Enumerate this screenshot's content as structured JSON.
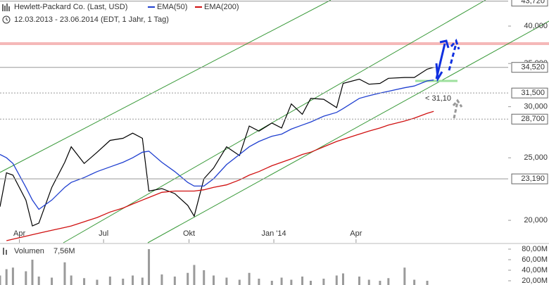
{
  "chart_data": [
    {
      "type": "line",
      "subtitle": "12.03.2013 - 23.06.2014 (EDT, 1 Jahr, 1 Tag)",
      "x": [
        0,
        1,
        2,
        4,
        5,
        6,
        8,
        10,
        11,
        13,
        15,
        17,
        19,
        20.5,
        22,
        23,
        25,
        27,
        29,
        30,
        31.5,
        33,
        35,
        37,
        38.5,
        40,
        42,
        43.5,
        45,
        46.7,
        48,
        50,
        52,
        53,
        55.5,
        57,
        58.7,
        60,
        62.5,
        64,
        66,
        67
      ],
      "xlim": [
        0,
        78.5
      ],
      "xticks": [
        {
          "value": 3,
          "label": "Apr"
        },
        {
          "value": 16,
          "label": "Jul"
        },
        {
          "value": 29.2,
          "label": "Okt"
        },
        {
          "value": 42.3,
          "label": "Jan '14"
        },
        {
          "value": 55,
          "label": "Apr"
        }
      ],
      "ylim": [
        18460,
        43900
      ],
      "log_scale": true,
      "yticks": [
        {
          "value": 20000,
          "label": "20,000"
        },
        {
          "value": 25000,
          "label": "25,000"
        },
        {
          "value": 30000,
          "label": "30,000"
        },
        {
          "value": 35000,
          "label": "35,000"
        },
        {
          "value": 40000,
          "label": "40,000"
        }
      ],
      "levels": [
        {
          "value": 43720,
          "label": "43,720"
        },
        {
          "value": 34520,
          "label": "34,520"
        },
        {
          "value": 31500,
          "label": "31,500"
        },
        {
          "value": 28700,
          "label": "28,700"
        },
        {
          "value": 23190,
          "label": "23,190"
        }
      ],
      "annotation": "< 31,10",
      "series": [
        {
          "name": "Hewlett-Packard Co. (Last, USD)",
          "color": "#000000",
          "values": [
            21000,
            23700,
            23500,
            21500,
            19600,
            19800,
            22500,
            24600,
            26000,
            24500,
            25500,
            26600,
            26800,
            27300,
            26800,
            22200,
            22400,
            22000,
            21100,
            20300,
            23200,
            24100,
            26000,
            25200,
            28000,
            27500,
            28300,
            27800,
            30300,
            29200,
            30900,
            30800,
            29900,
            32600,
            33100,
            32500,
            32600,
            33200,
            33300,
            33300,
            34300,
            34520
          ]
        },
        {
          "name": "EMA(50)",
          "color": "#1f3fd0",
          "values": [
            25300,
            25000,
            24500,
            22500,
            21500,
            20800,
            21500,
            22500,
            22900,
            23300,
            23800,
            24200,
            24600,
            25000,
            25500,
            25600,
            24600,
            23800,
            22900,
            22600,
            22600,
            23200,
            24400,
            25300,
            26000,
            26500,
            27000,
            27200,
            27700,
            28100,
            28400,
            29000,
            29400,
            29800,
            30900,
            31200,
            31500,
            31700,
            32100,
            32300,
            32900,
            33000
          ]
        },
        {
          "name": "EMA(200)",
          "color": "#d01010",
          "values": [
            null,
            18600,
            18700,
            18900,
            19000,
            19100,
            19300,
            19500,
            19600,
            19900,
            20200,
            20600,
            20900,
            21200,
            21500,
            21700,
            22100,
            22200,
            22200,
            22200,
            22300,
            22500,
            22700,
            23100,
            23500,
            23800,
            24300,
            24600,
            24900,
            25300,
            25500,
            26000,
            26500,
            26700,
            27200,
            27500,
            27800,
            28100,
            28500,
            28800,
            29300,
            29500
          ]
        }
      ]
    },
    {
      "type": "bar",
      "title": "Volumen",
      "ylim": [
        12,
        82.7
      ],
      "yticks": [
        {
          "value": 20,
          "label": "20,00M"
        },
        {
          "value": 40,
          "label": "40,00M"
        },
        {
          "value": 60,
          "label": "60,00M"
        },
        {
          "value": 80,
          "label": "80,00M"
        }
      ],
      "color": "#9a9a9a",
      "values": [
        30,
        42,
        45,
        38,
        60,
        28,
        26,
        55,
        30,
        25,
        22,
        28,
        24,
        30,
        26,
        80,
        32,
        28,
        35,
        50,
        40,
        30,
        26,
        22,
        35,
        24,
        20,
        26,
        22,
        28,
        20,
        24,
        30,
        34,
        28,
        22,
        20,
        25,
        45,
        22,
        20,
        7.56
      ],
      "value_labels": [
        null,
        null,
        null,
        null,
        null,
        null,
        null,
        null,
        null,
        null,
        null,
        null,
        null,
        null,
        null,
        null,
        null,
        null,
        null,
        null,
        null,
        null,
        null,
        null,
        null,
        null,
        null,
        null,
        null,
        null,
        null,
        null,
        null,
        null,
        null,
        null,
        null,
        null,
        null,
        null,
        null,
        "7,56M"
      ]
    }
  ]
}
